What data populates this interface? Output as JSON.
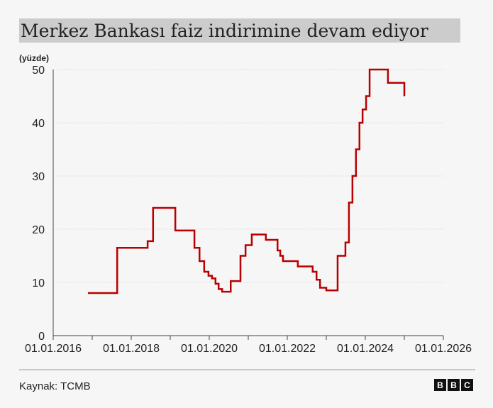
{
  "chart_data": {
    "type": "step",
    "title": "Merkez Bankası faiz indirimine devam ediyor",
    "y_label": "(yüzde)",
    "source": "Kaynak: TCMB",
    "logo": [
      "B",
      "B",
      "C"
    ],
    "x": [
      2016.89,
      2017.64,
      2018.42,
      2018.56,
      2019.13,
      2019.62,
      2019.75,
      2019.87,
      2019.98,
      2020.07,
      2020.16,
      2020.24,
      2020.33,
      2020.55,
      2020.8,
      2020.93,
      2021.09,
      2021.45,
      2021.75,
      2021.82,
      2021.89,
      2022.27,
      2022.65,
      2022.75,
      2022.84,
      2023.0,
      2023.29,
      2023.49,
      2023.58,
      2023.67,
      2023.76,
      2023.85,
      2023.93,
      2024.02,
      2024.11,
      2024.58,
      2025.0
    ],
    "series": [
      {
        "color": "#b80000",
        "values": [
          8,
          16.5,
          17.75,
          24,
          19.75,
          16.5,
          14,
          12,
          11.25,
          10.75,
          9.75,
          8.75,
          8.25,
          10.25,
          15,
          17,
          19,
          18,
          16,
          15,
          14,
          13,
          12,
          10.5,
          9,
          8.5,
          15,
          17.5,
          25,
          30,
          35,
          40,
          42.5,
          45,
          50,
          47.5,
          45
        ]
      }
    ],
    "xlim": [
      2016,
      2026
    ],
    "xticks": [
      {
        "value": 2016,
        "label": "01.01.2016"
      },
      {
        "value": 2018,
        "label": "01.01.2018"
      },
      {
        "value": 2020,
        "label": "01.01.2020"
      },
      {
        "value": 2022,
        "label": "01.01.2022"
      },
      {
        "value": 2024,
        "label": "01.01.2024"
      },
      {
        "value": 2026,
        "label": "01.01.2026"
      }
    ],
    "xminorticks": [
      2017,
      2019,
      2021,
      2023,
      2025
    ],
    "ylim": [
      0,
      50
    ],
    "yticks": [
      0,
      10,
      20,
      30,
      40,
      50
    ],
    "grid": true
  }
}
